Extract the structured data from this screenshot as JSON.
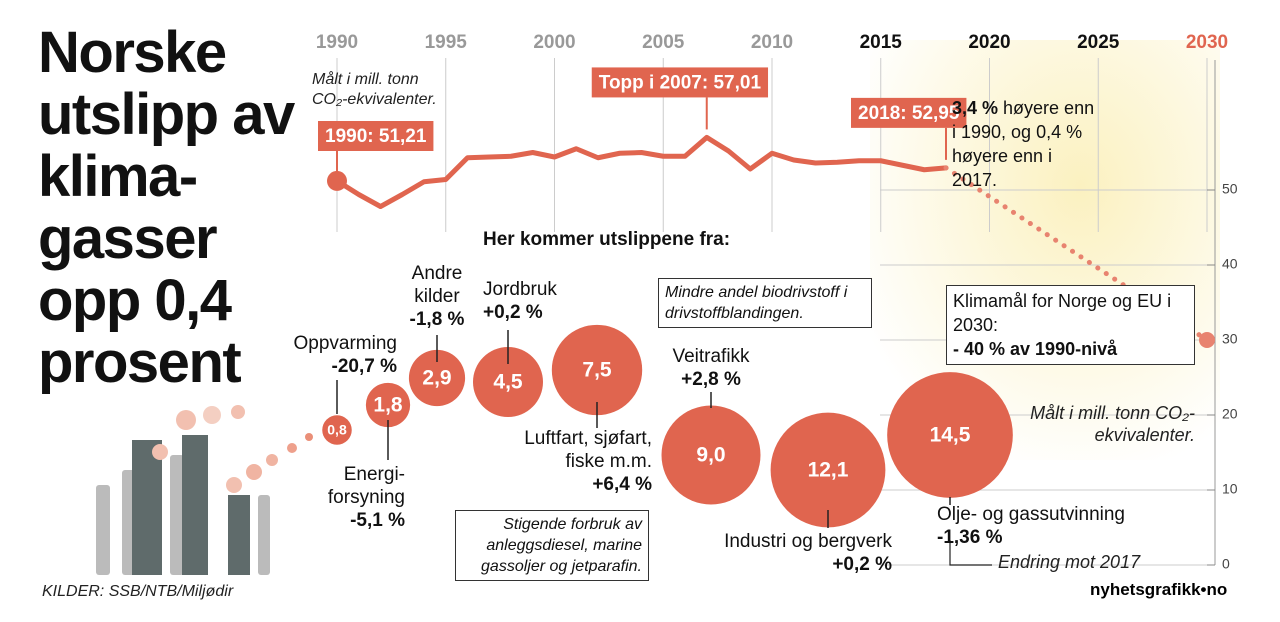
{
  "chart_data": [
    {
      "type": "line",
      "title": "Norske\nutslipp av\nklima-\ngasser\nopp 0,4\nprosent",
      "subtitle": "Målt i mill. tonn\nCO₂-ekvivalenter.",
      "x": [
        1990,
        1991,
        1992,
        1993,
        1994,
        1995,
        1996,
        1997,
        1998,
        1999,
        2000,
        2001,
        2002,
        2003,
        2004,
        2005,
        2006,
        2007,
        2008,
        2009,
        2010,
        2011,
        2012,
        2013,
        2014,
        2015,
        2016,
        2017,
        2018
      ],
      "xlim": [
        1990,
        2030
      ],
      "xticks": [
        1990,
        1995,
        2000,
        2005,
        2010,
        2015,
        2020,
        2025,
        2030
      ],
      "xtick_colors": [
        "#999",
        "#999",
        "#999",
        "#999",
        "#999",
        "#111",
        "#111",
        "#111",
        "#e0654f"
      ],
      "ylim": [
        0,
        60
      ],
      "yticks": [
        0,
        10,
        20,
        30,
        40,
        50
      ],
      "grid": true,
      "series": [
        {
          "color": "#e0654f",
          "values": [
            51.21,
            49.4,
            47.8,
            49.4,
            51.1,
            51.4,
            54.3,
            54.4,
            54.5,
            55.0,
            54.4,
            55.5,
            54.3,
            54.9,
            55.0,
            54.5,
            54.5,
            57.01,
            55.2,
            52.8,
            54.9,
            54.0,
            53.6,
            53.7,
            53.9,
            53.9,
            53.3,
            52.7,
            52.95
          ],
          "value_labels": [
            "1990: 51,21",
            null,
            null,
            null,
            null,
            null,
            null,
            null,
            null,
            null,
            null,
            null,
            null,
            null,
            null,
            null,
            null,
            "Topp i 2007: 57,01",
            null,
            null,
            null,
            null,
            null,
            null,
            null,
            null,
            null,
            null,
            "2018: 52,95"
          ]
        },
        {
          "color": "#e8836f",
          "dashed": true,
          "x": [
            2018,
            2030
          ],
          "values": [
            52.95,
            30
          ]
        }
      ],
      "annotations": {
        "change_note": [
          "3,4 %",
          " høyere enn i 1990, og 0,4 % høyere enn i 2017."
        ],
        "target_note": [
          "Klimamål for Norge og EU i 2030:",
          "- 40 % av 1990-nivå"
        ]
      }
    },
    {
      "type": "bubble",
      "title": "Her kommer utslippene fra:",
      "color": "#e0654f",
      "categories": [
        "Oppvarming",
        "Energi-\nforsyning",
        "Andre\nkilder",
        "Jordbruk",
        "Luftfart, sjøfart,\nfiske m.m.",
        "Veitrafikk",
        "Industri og bergverk",
        "Olje- og gassutvinning"
      ],
      "values": [
        0.8,
        1.8,
        2.9,
        4.5,
        7.5,
        9.0,
        12.1,
        14.5
      ],
      "value_labels": [
        "0,8",
        "1,8",
        "2,9",
        "4,5",
        "7,5",
        "9,0",
        "12,1",
        "14,5"
      ],
      "changes": [
        -20.7,
        -5.1,
        -1.8,
        0.2,
        6.4,
        2.8,
        0.2,
        -1.36
      ],
      "change_labels": [
        "-20,7 %",
        "-5,1 %",
        "-1,8 %",
        "+0,2 %",
        "+6,4 %",
        "+2,8 %",
        "+0,2 %",
        "-1,36 %"
      ],
      "notes": [
        "Mindre andel biodrivstoff i drivstoffblandingen.",
        "Stigende forbruk av anleggsdiesel, marine gassoljer og jetparafin.",
        "Målt i mill. tonn CO₂-ekvivalenter.",
        "Endring mot 2017"
      ]
    }
  ],
  "source": "KILDER: SSB/NTB/Miljødir",
  "logo": "nyhetsgrafikk•no"
}
